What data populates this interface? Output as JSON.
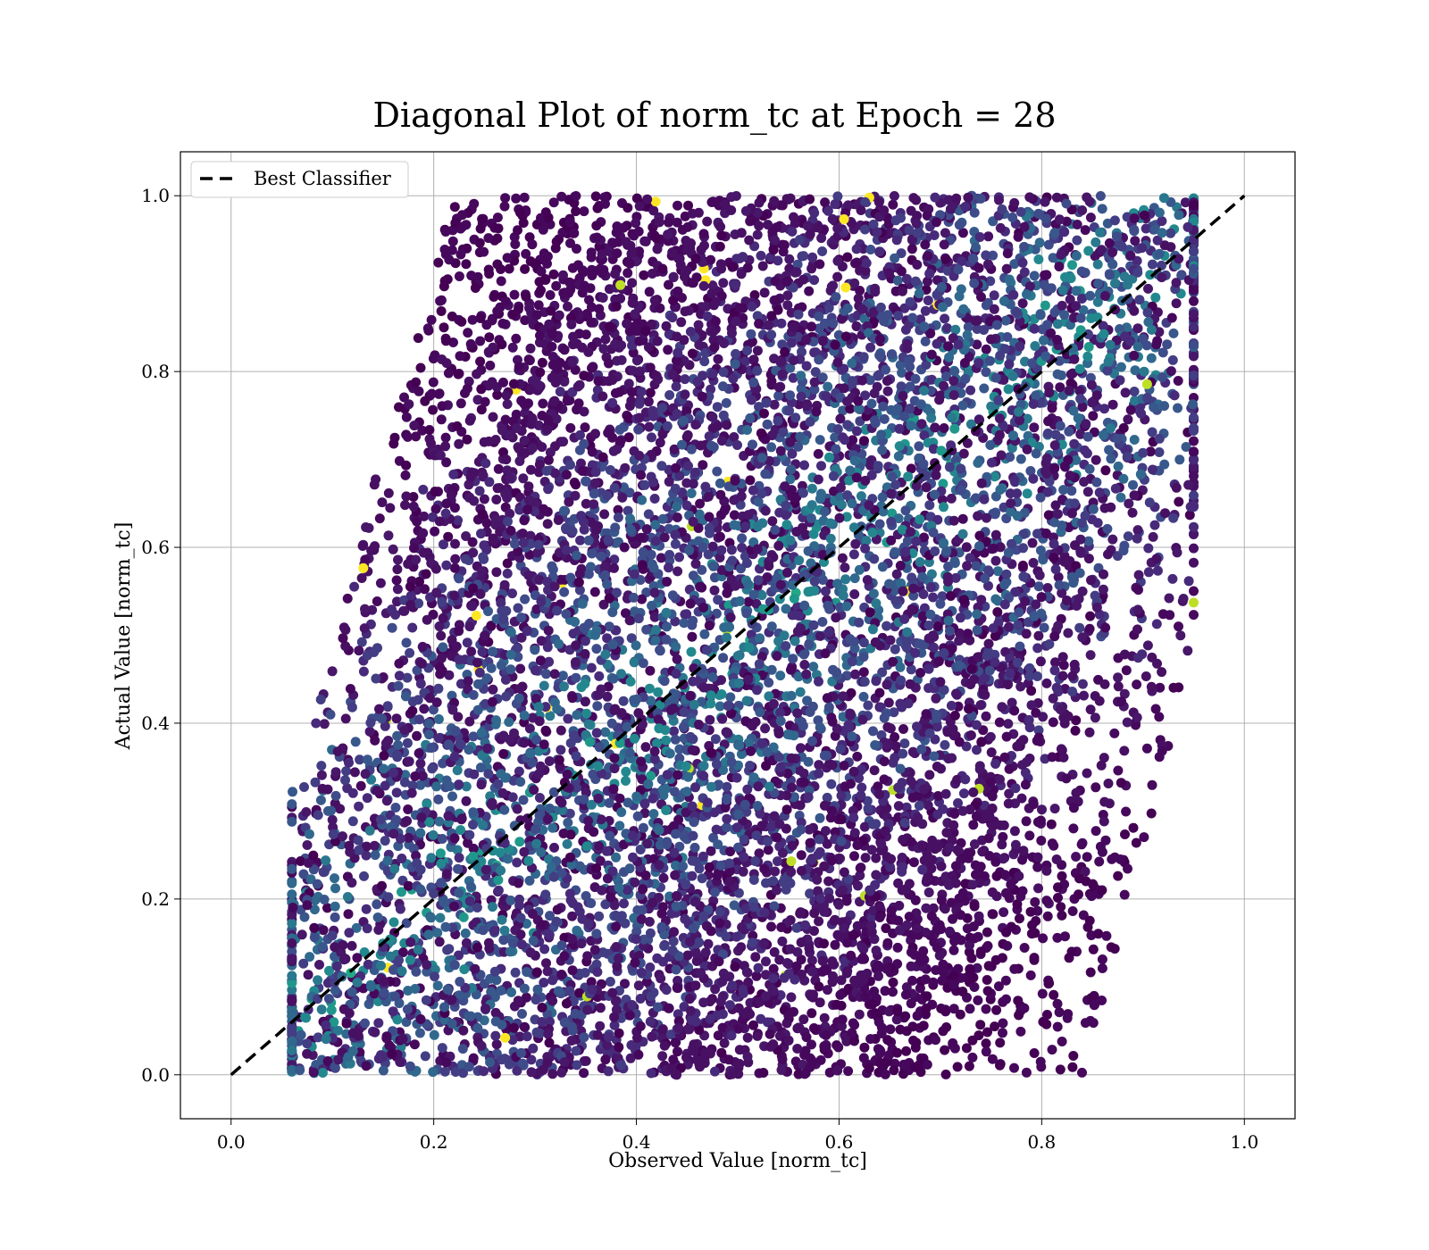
{
  "chart_data": {
    "type": "scatter",
    "title": "Diagonal Plot of norm_tc at Epoch = 28",
    "xlabel": "Observed Value [norm_tc]",
    "ylabel": "Actual Value [norm_tc]",
    "xlim": [
      -0.05,
      1.05
    ],
    "ylim": [
      -0.05,
      1.05
    ],
    "xticks": [
      "0.0",
      "0.2",
      "0.4",
      "0.6",
      "0.8",
      "1.0"
    ],
    "yticks": [
      "0.0",
      "0.2",
      "0.4",
      "0.6",
      "0.8",
      "1.0"
    ],
    "grid": true,
    "colormap": "viridis",
    "legend": {
      "placement": "top-left",
      "entries": [
        "Best Classifier"
      ]
    },
    "reference_line": {
      "name": "Best Classifier",
      "x": [
        0,
        1
      ],
      "y": [
        0,
        1
      ],
      "style": "dashed",
      "color": "#000000"
    },
    "points_summary": {
      "x_range": [
        0.06,
        0.95
      ],
      "y_range": [
        0.0,
        1.0
      ],
      "note_pattern": "dense point cloud spread around the diagonal, band shifted rightwards at low actual values and leftwards at high actual values"
    }
  }
}
